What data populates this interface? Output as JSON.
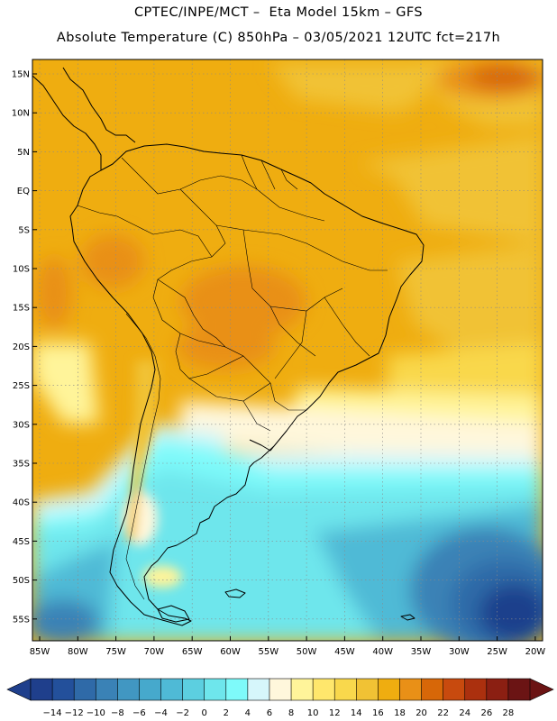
{
  "header": {
    "line1": "CPTEC/INPE/MCT –  Eta Model 15km – GFS",
    "line2": "Absolute Temperature (C) 850hPa – 03/05/2021 12UTC fct=217h"
  },
  "map": {
    "latitude_labels": [
      "15N",
      "10N",
      "5N",
      "EQ",
      "5S",
      "10S",
      "15S",
      "20S",
      "25S",
      "30S",
      "35S",
      "40S",
      "45S",
      "50S",
      "55S"
    ],
    "longitude_labels": [
      "85W",
      "80W",
      "75W",
      "70W",
      "65W",
      "60W",
      "55W",
      "50W",
      "45W",
      "40W",
      "35W",
      "30W",
      "25W",
      "20W"
    ]
  },
  "colorbar": {
    "labels": [
      "-14",
      "-12",
      "-10",
      "-8",
      "-6",
      "-4",
      "-2",
      "0",
      "2",
      "4",
      "6",
      "8",
      "10",
      "12",
      "14",
      "16",
      "18",
      "20",
      "22",
      "24",
      "26",
      "28"
    ],
    "colors": [
      "#1f3f8c",
      "#23509b",
      "#2f6aa8",
      "#3a82b6",
      "#4197c2",
      "#46a9cc",
      "#4fbad6",
      "#5ccfe0",
      "#6ee6ec",
      "#7efafa",
      "#d6f6fb",
      "#fff7dc",
      "#fff49a",
      "#ffe76c",
      "#f9d84c",
      "#f1c234",
      "#efad10",
      "#e99017",
      "#d76708",
      "#c84a0e",
      "#ab300e",
      "#8b1f12",
      "#6b1414"
    ],
    "under_color": "#1f3f8c",
    "over_color": "#6b1414"
  }
}
